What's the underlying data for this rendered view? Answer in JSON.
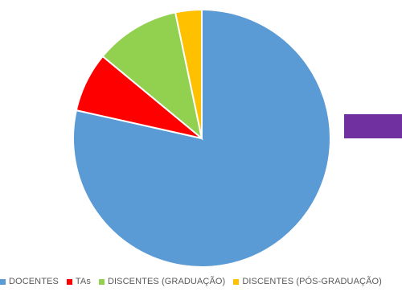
{
  "chart_data": {
    "type": "pie",
    "title": "",
    "slices": [
      {
        "label": "DOCENTES",
        "value": 78.5,
        "color": "#5B9BD5"
      },
      {
        "label": "TAs",
        "value": 7.5,
        "color": "#FF0000"
      },
      {
        "label": "DISCENTES (GRADUAÇÃO)",
        "value": 10.7,
        "color": "#92D050"
      },
      {
        "label": "DISCENTES (PÓS-GRADUAÇÃO)",
        "value": 3.3,
        "color": "#FFC000"
      }
    ],
    "legend_position": "bottom"
  },
  "decoration": {
    "right_block_color": "#7030A0"
  }
}
